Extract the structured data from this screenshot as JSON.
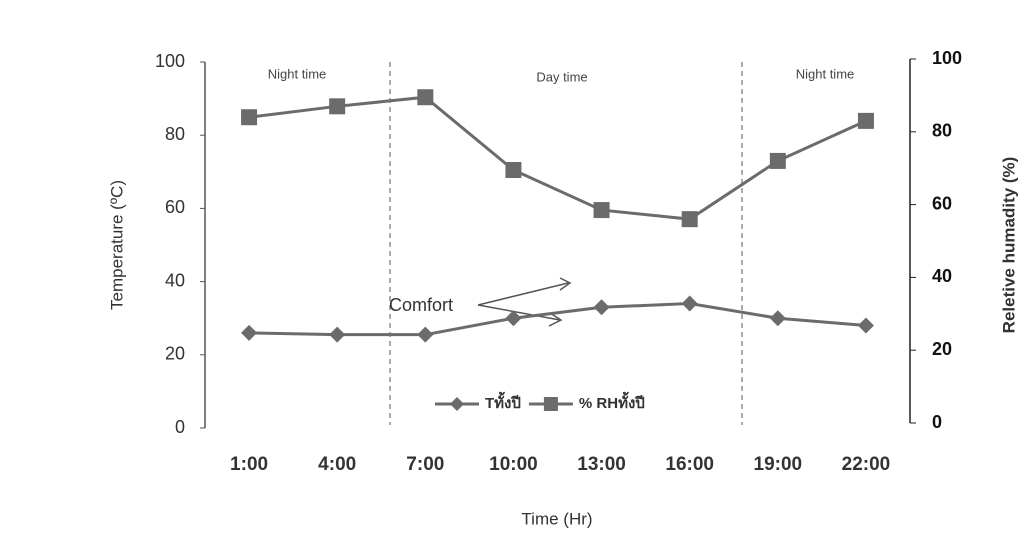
{
  "chart_data": {
    "type": "line",
    "categories": [
      "1:00",
      "4:00",
      "7:00",
      "10:00",
      "13:00",
      "16:00",
      "19:00",
      "22:00"
    ],
    "series": [
      {
        "name": "Tทั้งปี",
        "color": "#6b6b6b",
        "marker": "diamond",
        "values": [
          26,
          25.5,
          25.5,
          30,
          33,
          34,
          30,
          28
        ]
      },
      {
        "name": "% RHทั้งปี",
        "color": "#6b6b6b",
        "marker": "square",
        "axis": "y2",
        "values": [
          84,
          87,
          89.5,
          69.5,
          58.5,
          56,
          72,
          83
        ]
      }
    ],
    "ylim": [
      0,
      100
    ],
    "yticks": [
      0,
      20,
      40,
      60,
      80,
      100
    ],
    "y2lim": [
      0,
      100
    ],
    "y2ticks": [
      0,
      20,
      40,
      60,
      80,
      100
    ],
    "ylabel": "Temperature (ºC)",
    "y2label": "Reletive humadity (%)",
    "xlabel": "Time (Hr)",
    "annotations": [
      "Night time",
      "Day time",
      "Night time",
      "Comfort"
    ]
  }
}
